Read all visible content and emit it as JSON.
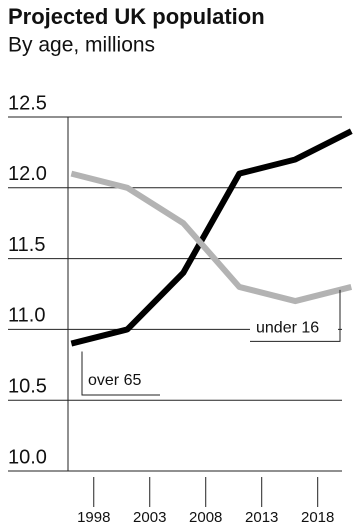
{
  "chart_data": {
    "type": "line",
    "title": "Projected UK population",
    "subtitle": "By age, millions",
    "x": [
      1996,
      2001,
      2006,
      2011,
      2016,
      2021
    ],
    "xlim": [
      1995.7,
      2021.6
    ],
    "xticks": [
      1998,
      2003,
      2008,
      2013,
      2018
    ],
    "ylim": [
      10,
      12.5
    ],
    "yticks": [
      {
        "value": 10,
        "label": "10.0"
      },
      10.5,
      {
        "value": 11,
        "label": "11.0"
      },
      11.5,
      {
        "value": 12,
        "label": "12.0"
      },
      12.5
    ],
    "grid": true,
    "series": [
      {
        "name": "over 65",
        "color": "#000000",
        "values": [
          10.9,
          11.0,
          11.4,
          12.1,
          12.2,
          12.4
        ]
      },
      {
        "name": "under 16",
        "color": "#b3b3b3",
        "values": [
          12.1,
          12.0,
          11.75,
          11.3,
          11.2,
          11.3
        ]
      }
    ]
  }
}
